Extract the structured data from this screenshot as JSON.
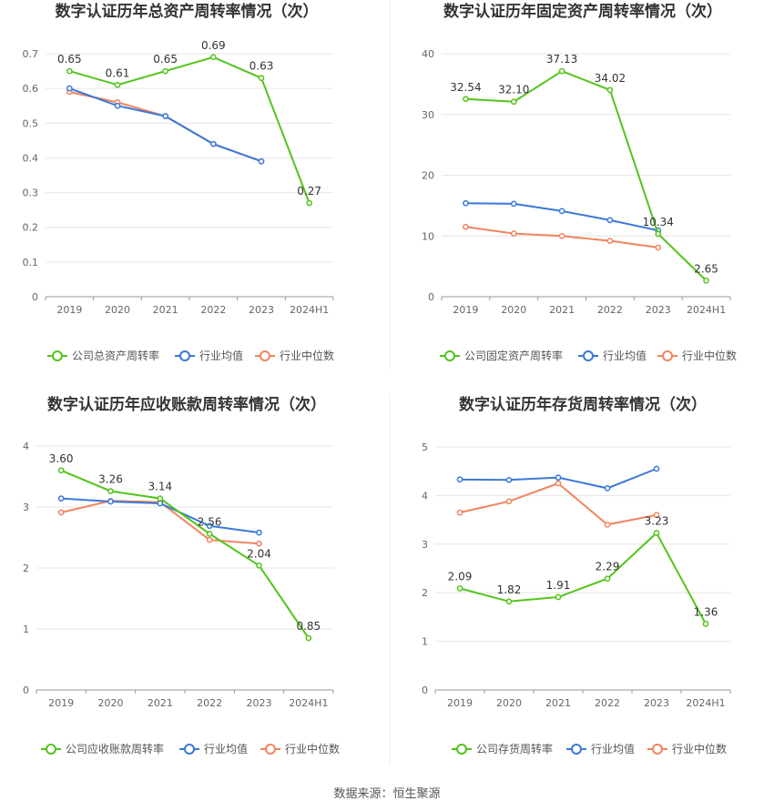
{
  "colors": {
    "company": "#52c41a",
    "avg": "#3a78d8",
    "median": "#f0845f"
  },
  "footer": "数据来源：恒生聚源",
  "chart_data": [
    {
      "type": "line",
      "title": "数字认证历年总资产周转率情况（次）",
      "categories": [
        "2019",
        "2020",
        "2021",
        "2022",
        "2023",
        "2024H1"
      ],
      "ylim": [
        0,
        0.7
      ],
      "yticks": [
        "0",
        "0.1",
        "0.2",
        "0.3",
        "0.4",
        "0.5",
        "0.6",
        "0.7"
      ],
      "legend": "bottom",
      "series": [
        {
          "name": "公司总资产周转率",
          "key": "company",
          "values": [
            0.65,
            0.61,
            0.65,
            0.69,
            0.63,
            0.27
          ],
          "labels": [
            "0.65",
            "0.61",
            "0.65",
            "0.69",
            "0.63",
            "0.27"
          ]
        },
        {
          "name": "行业均值",
          "key": "avg",
          "values": [
            0.6,
            0.55,
            0.52,
            0.44,
            0.39,
            null
          ]
        },
        {
          "name": "行业中位数",
          "key": "median",
          "values": [
            0.59,
            0.56,
            0.52,
            0.44,
            0.39,
            null
          ]
        }
      ]
    },
    {
      "type": "line",
      "title": "数字认证历年固定资产周转率情况（次）",
      "categories": [
        "2019",
        "2020",
        "2021",
        "2022",
        "2023",
        "2024H1"
      ],
      "ylim": [
        0,
        40
      ],
      "yticks": [
        "0",
        "10",
        "20",
        "30",
        "40"
      ],
      "legend": "bottom",
      "series": [
        {
          "name": "公司固定资产周转率",
          "key": "company",
          "values": [
            32.54,
            32.1,
            37.13,
            34.02,
            10.34,
            2.65
          ],
          "labels": [
            "32.54",
            "32.10",
            "37.13",
            "34.02",
            "10.34",
            "2.65"
          ]
        },
        {
          "name": "行业均值",
          "key": "avg",
          "values": [
            15.4,
            15.3,
            14.1,
            12.6,
            10.9,
            null
          ]
        },
        {
          "name": "行业中位数",
          "key": "median",
          "values": [
            11.5,
            10.4,
            10.0,
            9.2,
            8.1,
            null
          ]
        }
      ]
    },
    {
      "type": "line",
      "title": "数字认证历年应收账款周转率情况（次）",
      "categories": [
        "2019",
        "2020",
        "2021",
        "2022",
        "2023",
        "2024H1"
      ],
      "ylim": [
        0,
        4
      ],
      "yticks": [
        "0",
        "1",
        "2",
        "3",
        "4"
      ],
      "legend": "bottom",
      "series": [
        {
          "name": "公司应收账款周转率",
          "key": "company",
          "values": [
            3.6,
            3.26,
            3.14,
            2.56,
            2.04,
            0.85
          ],
          "labels": [
            "3.60",
            "3.26",
            "3.14",
            "2.56",
            "2.04",
            "0.85"
          ]
        },
        {
          "name": "行业均值",
          "key": "avg",
          "values": [
            3.14,
            3.09,
            3.06,
            2.69,
            2.58,
            null
          ]
        },
        {
          "name": "行业中位数",
          "key": "median",
          "values": [
            2.91,
            3.1,
            3.08,
            2.46,
            2.4,
            null
          ]
        }
      ]
    },
    {
      "type": "line",
      "title": "数字认证历年存货周转率情况（次）",
      "categories": [
        "2019",
        "2020",
        "2021",
        "2022",
        "2023",
        "2024H1"
      ],
      "ylim": [
        0,
        5
      ],
      "yticks": [
        "0",
        "1",
        "2",
        "3",
        "4",
        "5"
      ],
      "legend": "bottom",
      "series": [
        {
          "name": "公司存货周转率",
          "key": "company",
          "values": [
            2.09,
            1.82,
            1.91,
            2.29,
            3.23,
            1.36
          ],
          "labels": [
            "2.09",
            "1.82",
            "1.91",
            "2.29",
            "3.23",
            "1.36"
          ]
        },
        {
          "name": "行业均值",
          "key": "avg",
          "values": [
            4.33,
            4.32,
            4.37,
            4.15,
            4.55,
            null
          ]
        },
        {
          "name": "行业中位数",
          "key": "median",
          "values": [
            3.65,
            3.88,
            4.25,
            3.4,
            3.6,
            null
          ]
        }
      ]
    }
  ]
}
